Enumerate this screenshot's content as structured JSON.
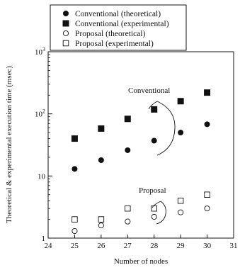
{
  "chart_data": {
    "type": "scatter",
    "xlabel": "Number of nodes",
    "ylabel": "Theoretical & experimental execution time (msec)",
    "xlim": [
      24,
      31
    ],
    "ylim": [
      1,
      1000
    ],
    "y_scale": "log",
    "grid": false,
    "legend_placement": "top-left",
    "x_ticks": [
      "24",
      "25",
      "26",
      "27",
      "28",
      "29",
      "30",
      "31"
    ],
    "y_ticks": [
      {
        "value": 1,
        "label": "1"
      },
      {
        "value": 10,
        "label": "10"
      },
      {
        "value": 100,
        "label": "10²"
      },
      {
        "value": 1000,
        "label": "10³"
      }
    ],
    "series": [
      {
        "name": "Conventional (theoretical)",
        "marker": "filled-circle",
        "x": [
          25,
          26,
          27,
          28,
          29,
          30
        ],
        "y": [
          13,
          18,
          26,
          37,
          50,
          68
        ]
      },
      {
        "name": "Conventional (experimental)",
        "marker": "filled-square",
        "x": [
          25,
          26,
          27,
          28,
          29,
          30
        ],
        "y": [
          40,
          58,
          83,
          118,
          160,
          220
        ]
      },
      {
        "name": "Proposal (theoretical)",
        "marker": "open-circle",
        "x": [
          25,
          26,
          27,
          28,
          29,
          30
        ],
        "y": [
          1.3,
          1.6,
          1.85,
          2.2,
          2.6,
          3.0
        ]
      },
      {
        "name": "Proposal (experimental)",
        "marker": "open-square",
        "x": [
          25,
          26,
          27,
          28,
          29,
          30
        ],
        "y": [
          2,
          2,
          3,
          3,
          4,
          5
        ]
      }
    ],
    "annotations": [
      {
        "text": "Conventional",
        "x": 28
      },
      {
        "text": "Proposal",
        "x": 28
      }
    ]
  }
}
